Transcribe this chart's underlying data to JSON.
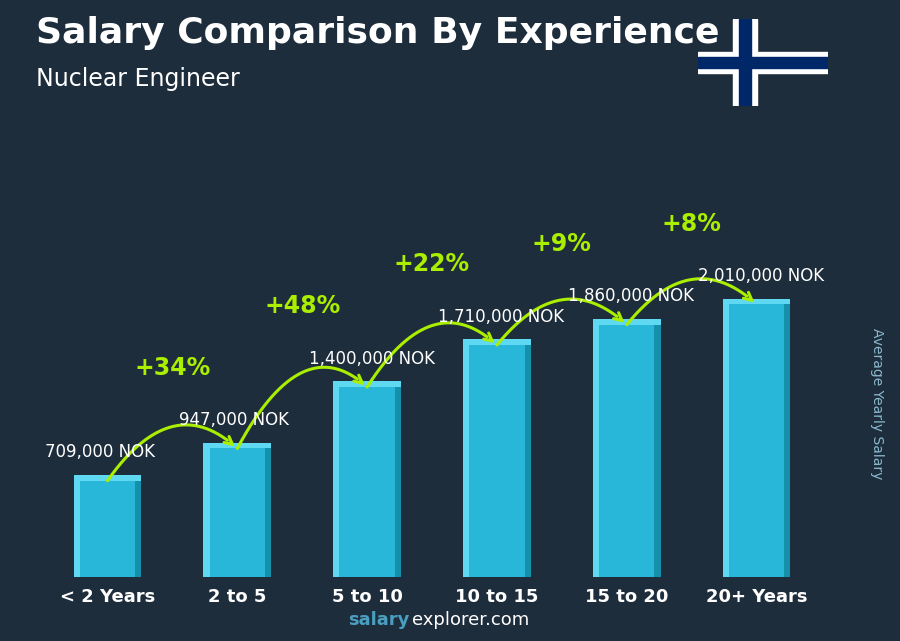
{
  "title": "Salary Comparison By Experience",
  "subtitle": "Nuclear Engineer",
  "ylabel": "Average Yearly Salary",
  "categories": [
    "< 2 Years",
    "2 to 5",
    "5 to 10",
    "10 to 15",
    "15 to 20",
    "20+ Years"
  ],
  "values": [
    709000,
    947000,
    1400000,
    1710000,
    1860000,
    2010000
  ],
  "labels": [
    "709,000 NOK",
    "947,000 NOK",
    "1,400,000 NOK",
    "1,710,000 NOK",
    "1,860,000 NOK",
    "2,010,000 NOK"
  ],
  "pct_changes": [
    "+34%",
    "+48%",
    "+22%",
    "+9%",
    "+8%"
  ],
  "bar_color_main": "#28b6d9",
  "bar_color_light": "#5fd8f2",
  "bar_color_dark": "#1490aa",
  "pct_color": "#aaee00",
  "label_color": "#ffffff",
  "bg_color": "#1e2d3c",
  "title_color": "#ffffff",
  "watermark_salary_color": "#4a9fc0",
  "watermark_explorer_color": "#ffffff",
  "ylabel_color": "#8ab8cc",
  "ylim": [
    0,
    2600000
  ],
  "title_fontsize": 26,
  "subtitle_fontsize": 17,
  "label_fontsize": 12,
  "pct_fontsize": 17,
  "tick_fontsize": 13,
  "watermark_fontsize": 13,
  "ylabel_fontsize": 10,
  "flag_red": "#EF2B2D",
  "flag_blue": "#002868",
  "flag_white": "#FFFFFF"
}
